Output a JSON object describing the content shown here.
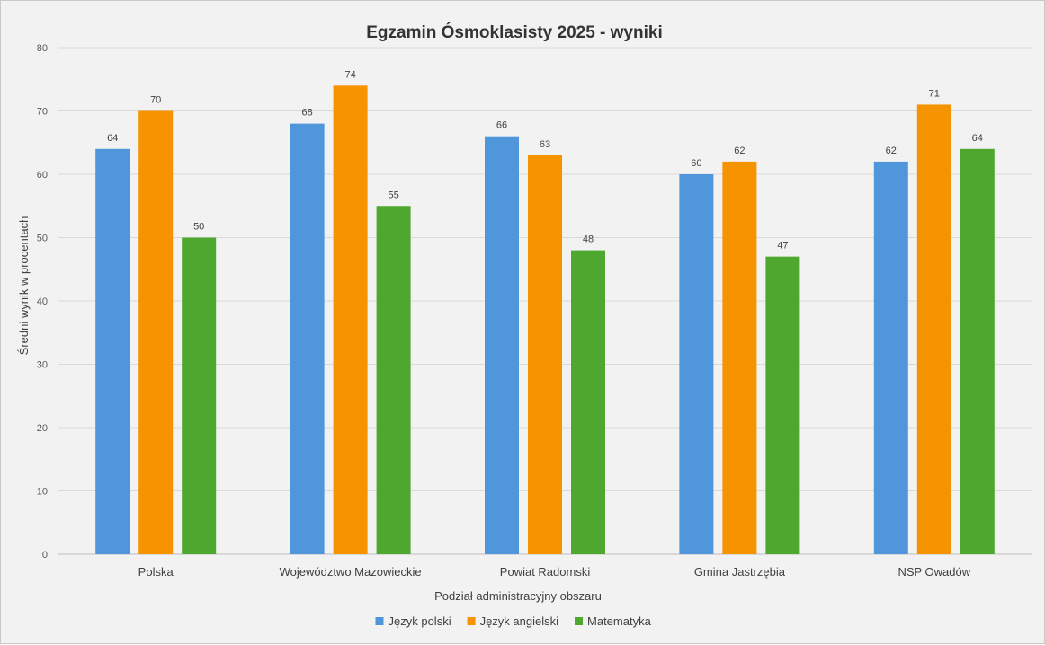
{
  "chart_data": {
    "type": "bar",
    "title": "Egzamin Ósmoklasisty 2025 - wyniki",
    "xlabel": "Podział administracyjny obszaru",
    "ylabel": "Średni wynik w procentach",
    "ylim": [
      0,
      80
    ],
    "yticks": [
      0,
      10,
      20,
      30,
      40,
      50,
      60,
      70,
      80
    ],
    "grid": true,
    "legend_position": "bottom",
    "categories": [
      "Polska",
      "Województwo Mazowieckie",
      "Powiat Radomski",
      "Gmina Jastrzębia",
      "NSP Owadów"
    ],
    "series": [
      {
        "name": "Język polski",
        "color": "#4f96db",
        "values": [
          64,
          68,
          66,
          60,
          62
        ]
      },
      {
        "name": "Język angielski",
        "color": "#f59300",
        "values": [
          70,
          74,
          63,
          62,
          71
        ]
      },
      {
        "name": "Matematyka",
        "color": "#4ea72e",
        "values": [
          50,
          55,
          48,
          47,
          64
        ]
      }
    ]
  }
}
